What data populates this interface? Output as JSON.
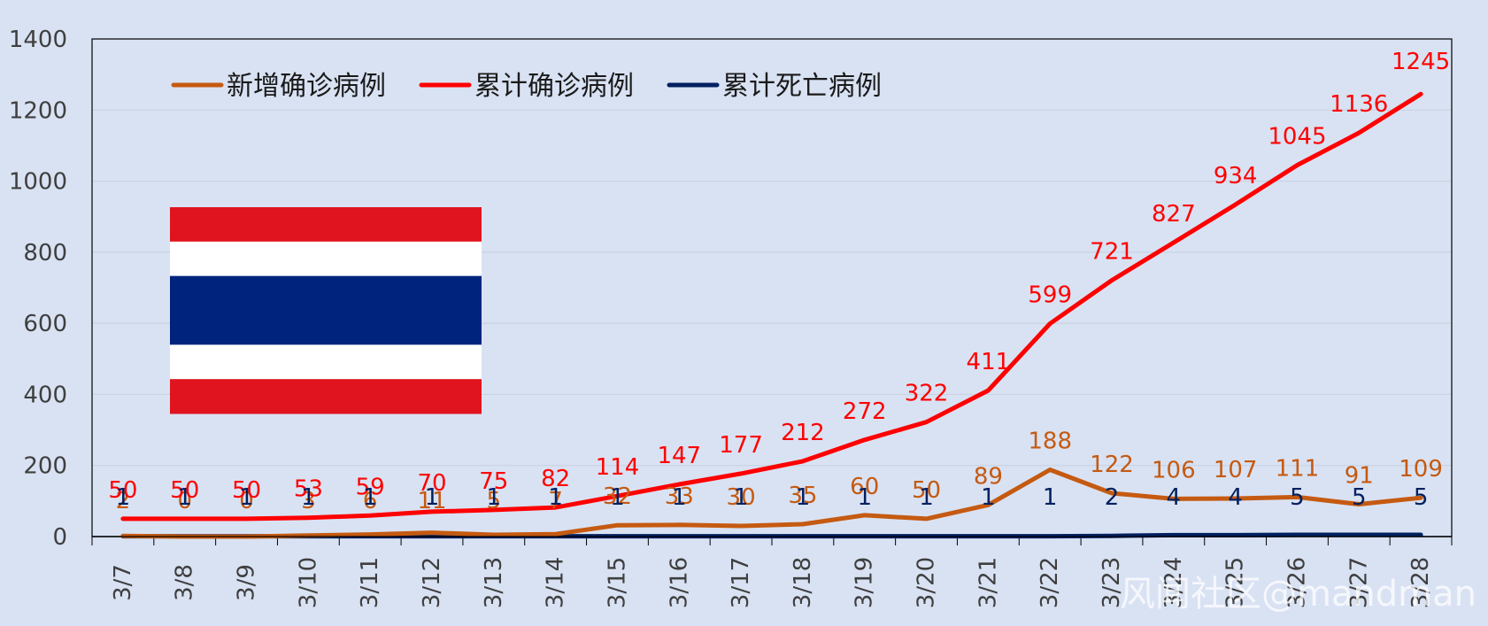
{
  "chart_data": {
    "type": "line",
    "categories": [
      "3/7",
      "3/8",
      "3/9",
      "3/10",
      "3/11",
      "3/12",
      "3/13",
      "3/14",
      "3/15",
      "3/16",
      "3/17",
      "3/18",
      "3/19",
      "3/20",
      "3/21",
      "3/22",
      "3/23",
      "3/24",
      "3/25",
      "3/26",
      "3/27",
      "3/28"
    ],
    "ylim": [
      0,
      1400
    ],
    "yticks": [
      0,
      200,
      400,
      600,
      800,
      1000,
      1200,
      1400
    ],
    "legend_position": "top-left",
    "grid": "horizontal",
    "series": [
      {
        "name": "新增确诊病例",
        "color": "#c55a11",
        "label_color": "#c55a11",
        "values": [
          2,
          0,
          0,
          3,
          6,
          11,
          5,
          7,
          32,
          33,
          30,
          35,
          60,
          50,
          89,
          188,
          122,
          106,
          107,
          111,
          91,
          109
        ]
      },
      {
        "name": "累计确诊病例",
        "color": "#ff0000",
        "label_color": "#ff0000",
        "values": [
          50,
          50,
          50,
          53,
          59,
          70,
          75,
          82,
          114,
          147,
          177,
          212,
          272,
          322,
          411,
          599,
          721,
          827,
          934,
          1045,
          1136,
          1245
        ]
      },
      {
        "name": "累计死亡病例",
        "color": "#002060",
        "label_color": "#002060",
        "values": [
          1,
          1,
          1,
          1,
          1,
          1,
          1,
          1,
          1,
          1,
          1,
          1,
          1,
          1,
          1,
          1,
          2,
          4,
          4,
          5,
          5,
          5
        ]
      }
    ]
  },
  "flag": {
    "name": "thailand-flag",
    "colors": [
      "#e0141e",
      "#ffffff",
      "#00247d",
      "#ffffff",
      "#e0141e"
    ]
  },
  "watermark": "风闻社区@mandman"
}
